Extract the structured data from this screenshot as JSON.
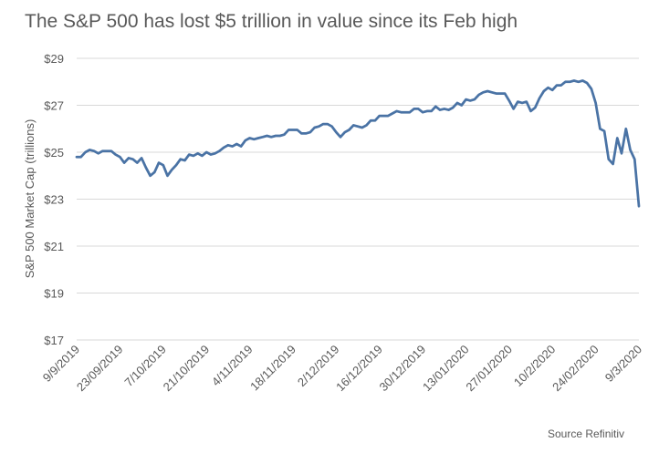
{
  "chart_data": {
    "type": "line",
    "title": "The S&P 500 has lost $5 trillion in value since its Feb high",
    "xlabel": "",
    "ylabel": "S&P 500 Market Cap (trillions)",
    "ylim": [
      17,
      29
    ],
    "y_ticks": [
      17,
      19,
      21,
      23,
      25,
      27,
      29
    ],
    "y_tick_labels": [
      "$17",
      "$19",
      "$21",
      "$23",
      "$25",
      "$27",
      "$29"
    ],
    "x_tick_labels": [
      "9/9/2019",
      "23/09/2019",
      "7/10/2019",
      "21/10/2019",
      "4/11/2019",
      "18/11/2019",
      "2/12/2019",
      "16/12/2019",
      "30/12/2019",
      "13/01/2020",
      "27/01/2020",
      "10/2/2020",
      "24/02/2020",
      "9/3/2020"
    ],
    "grid": true,
    "legend": "none",
    "source": "Source Refinitiv",
    "line_color": "#4A73A5",
    "series": [
      {
        "name": "S&P 500 Market Cap",
        "values": [
          24.8,
          24.8,
          25.0,
          25.1,
          25.05,
          24.95,
          25.05,
          25.05,
          25.05,
          24.9,
          24.8,
          24.55,
          24.75,
          24.7,
          24.55,
          24.75,
          24.35,
          24.0,
          24.15,
          24.55,
          24.45,
          24.0,
          24.25,
          24.45,
          24.7,
          24.65,
          24.9,
          24.85,
          24.95,
          24.85,
          25.0,
          24.9,
          24.95,
          25.05,
          25.2,
          25.3,
          25.25,
          25.35,
          25.25,
          25.5,
          25.6,
          25.55,
          25.6,
          25.65,
          25.7,
          25.65,
          25.7,
          25.7,
          25.75,
          25.95,
          25.95,
          25.95,
          25.8,
          25.8,
          25.85,
          26.05,
          26.1,
          26.2,
          26.2,
          26.1,
          25.85,
          25.65,
          25.85,
          25.95,
          26.15,
          26.1,
          26.05,
          26.15,
          26.35,
          26.35,
          26.55,
          26.55,
          26.55,
          26.65,
          26.75,
          26.7,
          26.7,
          26.7,
          26.85,
          26.85,
          26.7,
          26.75,
          26.75,
          26.95,
          26.8,
          26.85,
          26.8,
          26.9,
          27.1,
          27.0,
          27.25,
          27.2,
          27.25,
          27.45,
          27.55,
          27.6,
          27.55,
          27.5,
          27.5,
          27.5,
          27.2,
          26.85,
          27.15,
          27.1,
          27.15,
          26.75,
          26.9,
          27.3,
          27.6,
          27.75,
          27.65,
          27.85,
          27.85,
          28.0,
          28.0,
          28.05,
          28.0,
          28.05,
          27.95,
          27.7,
          27.1,
          26.0,
          25.9,
          24.7,
          24.5,
          25.6,
          24.95,
          26.0,
          25.1,
          24.7,
          22.7
        ]
      }
    ]
  }
}
